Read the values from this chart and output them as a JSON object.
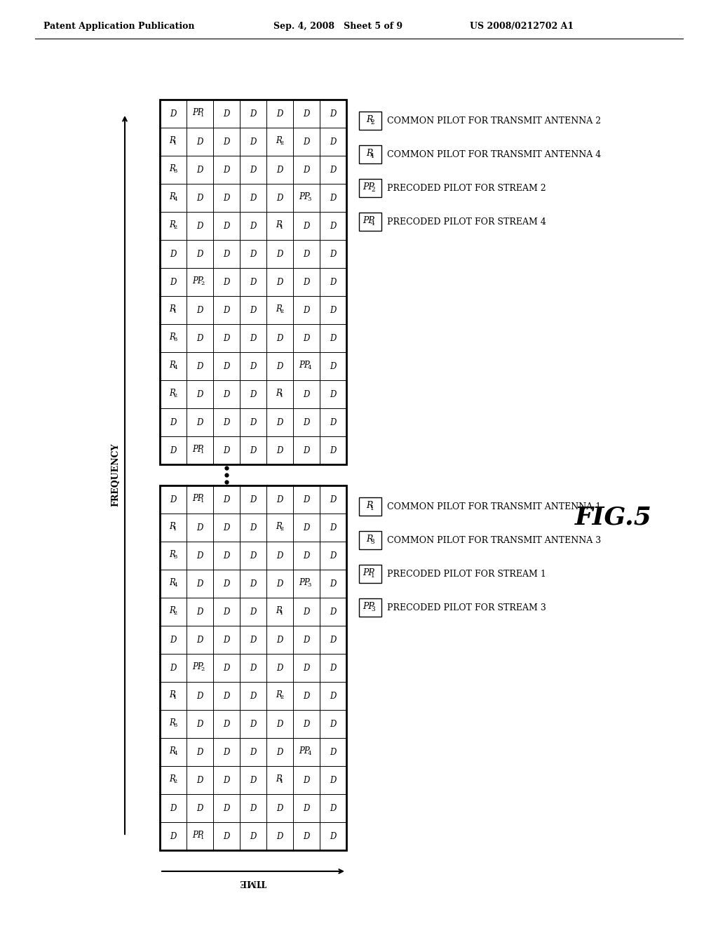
{
  "title_left": "Patent Application Publication",
  "title_date": "Sep. 4, 2008   Sheet 5 of 9",
  "title_right": "US 2008/0212702 A1",
  "fig_label": "FIG.5",
  "background": "#ffffff",
  "top_grid": [
    [
      "D",
      "PP1",
      "D",
      "D",
      "D",
      "D",
      "D"
    ],
    [
      "D",
      "D",
      "D",
      "D",
      "D",
      "D",
      "D"
    ],
    [
      "R2",
      "D",
      "D",
      "D",
      "R1",
      "D",
      "D"
    ],
    [
      "R4",
      "D",
      "D",
      "D",
      "D",
      "PP4",
      "D"
    ],
    [
      "R3",
      "D",
      "D",
      "D",
      "D",
      "D",
      "D"
    ],
    [
      "R1",
      "D",
      "D",
      "D",
      "R2",
      "D",
      "D"
    ],
    [
      "D",
      "PP2",
      "D",
      "D",
      "D",
      "D",
      "D"
    ],
    [
      "D",
      "D",
      "D",
      "D",
      "D",
      "D",
      "D"
    ],
    [
      "R2",
      "D",
      "D",
      "D",
      "R1",
      "D",
      "D"
    ],
    [
      "R4",
      "D",
      "D",
      "D",
      "D",
      "PP3",
      "D"
    ],
    [
      "R3",
      "D",
      "D",
      "D",
      "D",
      "D",
      "D"
    ],
    [
      "R1",
      "D",
      "D",
      "D",
      "R2",
      "D",
      "D"
    ],
    [
      "D",
      "PP1",
      "D",
      "D",
      "D",
      "D",
      "D"
    ]
  ],
  "bottom_grid": [
    [
      "D",
      "PP1",
      "D",
      "D",
      "D",
      "D",
      "D"
    ],
    [
      "D",
      "D",
      "D",
      "D",
      "D",
      "D",
      "D"
    ],
    [
      "R2",
      "D",
      "D",
      "D",
      "R1",
      "D",
      "D"
    ],
    [
      "R4",
      "D",
      "D",
      "D",
      "D",
      "PP4",
      "D"
    ],
    [
      "R3",
      "D",
      "D",
      "D",
      "D",
      "D",
      "D"
    ],
    [
      "R1",
      "D",
      "D",
      "D",
      "R2",
      "D",
      "D"
    ],
    [
      "D",
      "PP2",
      "D",
      "D",
      "D",
      "D",
      "D"
    ],
    [
      "D",
      "D",
      "D",
      "D",
      "D",
      "D",
      "D"
    ],
    [
      "R2",
      "D",
      "D",
      "D",
      "R1",
      "D",
      "D"
    ],
    [
      "R4",
      "D",
      "D",
      "D",
      "D",
      "PP3",
      "D"
    ],
    [
      "R3",
      "D",
      "D",
      "D",
      "D",
      "D",
      "D"
    ],
    [
      "R1",
      "D",
      "D",
      "D",
      "R2",
      "D",
      "D"
    ],
    [
      "D",
      "PP1",
      "D",
      "D",
      "D",
      "D",
      "D"
    ]
  ],
  "legend_bottom": [
    [
      "R1",
      "COMMON PILOT FOR TRANSMIT ANTENNA 1"
    ],
    [
      "R3",
      "COMMON PILOT FOR TRANSMIT ANTENNA 3"
    ],
    [
      "PP1",
      "PRECODED PILOT FOR STREAM 1"
    ],
    [
      "PP3",
      "PRECODED PILOT FOR STREAM 3"
    ]
  ],
  "legend_top": [
    [
      "R2",
      "COMMON PILOT FOR TRANSMIT ANTENNA 2"
    ],
    [
      "R4",
      "COMMON PILOT FOR TRANSMIT ANTENNA 4"
    ],
    [
      "PP2",
      "PRECODED PILOT FOR STREAM 2"
    ],
    [
      "PP4",
      "PRECODED PILOT FOR STREAM 4"
    ]
  ]
}
